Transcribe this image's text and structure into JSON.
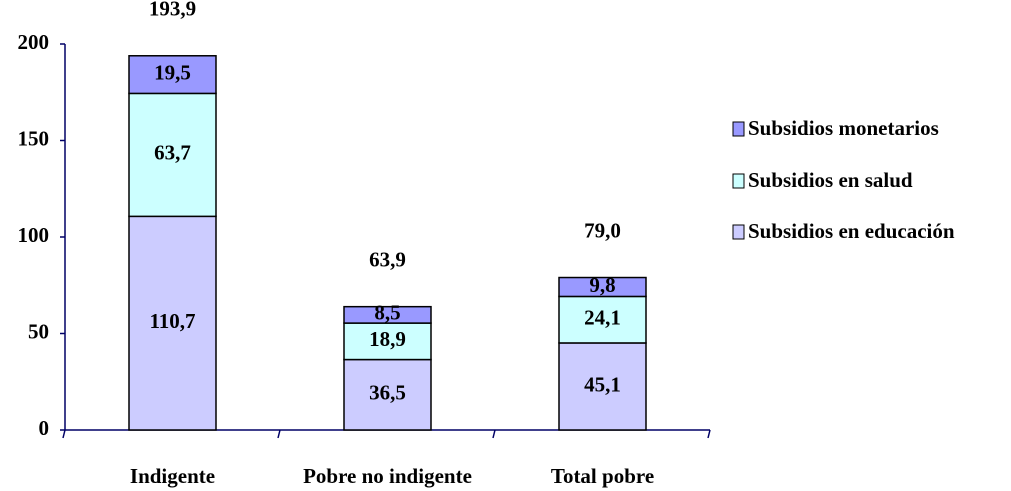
{
  "chart_data": {
    "type": "stacked_bar",
    "categories": [
      "Indigente",
      "Pobre no indigente",
      "Total pobre"
    ],
    "series": [
      {
        "name": "Subsidios en educación",
        "color": "#ccccff",
        "values": [
          110.7,
          36.5,
          45.1
        ],
        "value_labels": [
          "110,7",
          "36,5",
          "45,1"
        ]
      },
      {
        "name": "Subsidios en salud",
        "color": "#ccffff",
        "values": [
          63.7,
          18.9,
          24.1
        ],
        "value_labels": [
          "63,7",
          "18,9",
          "24,1"
        ]
      },
      {
        "name": "Subsidios monetarios",
        "color": "#9999ff",
        "values": [
          19.5,
          8.5,
          9.8
        ],
        "value_labels": [
          "19,5",
          "8,5",
          "9,8"
        ]
      }
    ],
    "totals": [
      193.9,
      63.9,
      79.0
    ],
    "total_labels": [
      "193,9",
      "63,9",
      "79,0"
    ],
    "ylim": [
      0,
      200
    ],
    "yticks": [
      0,
      50,
      100,
      150,
      200
    ],
    "grid": false,
    "legend": "right"
  }
}
